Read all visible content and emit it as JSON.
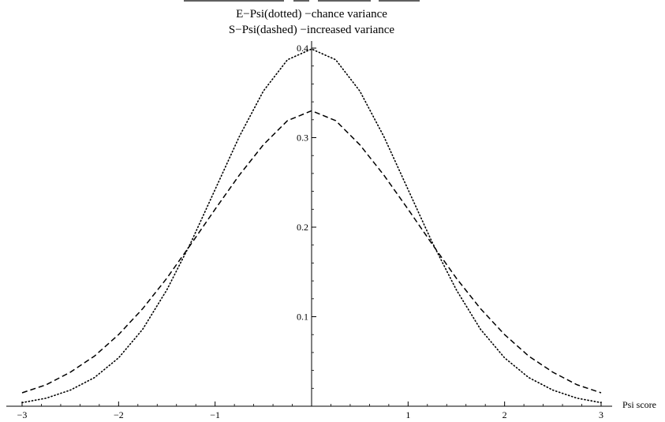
{
  "chart_data": {
    "type": "line",
    "title_lines": [
      "E−Psi(dotted) −chance variance",
      "S−Psi(dashed) −increased variance"
    ],
    "xlabel": "Psi score",
    "ylabel": "",
    "xlim": [
      -3.0,
      3.0
    ],
    "ylim": [
      0.0,
      0.4
    ],
    "x_ticks": [
      {
        "value": -3,
        "label": "−3"
      },
      {
        "value": -2,
        "label": "−2"
      },
      {
        "value": -1,
        "label": "−1"
      },
      {
        "value": 1,
        "label": "1"
      },
      {
        "value": 2,
        "label": "2"
      },
      {
        "value": 3,
        "label": "3"
      }
    ],
    "y_ticks": [
      {
        "value": 0.1,
        "label": "0.1"
      },
      {
        "value": 0.2,
        "label": "0.2"
      },
      {
        "value": 0.3,
        "label": "0.3"
      },
      {
        "value": 0.4,
        "label": "0.4"
      }
    ],
    "grid": false,
    "series": [
      {
        "style": "dotted",
        "color": "#000000",
        "x": [
          -3.0,
          -2.75,
          -2.5,
          -2.25,
          -2.0,
          -1.75,
          -1.5,
          -1.25,
          -1.0,
          -0.75,
          -0.5,
          -0.25,
          0.0,
          0.25,
          0.5,
          0.75,
          1.0,
          1.25,
          1.5,
          1.75,
          2.0,
          2.25,
          2.5,
          2.75,
          3.0
        ],
        "y": [
          0.004,
          0.009,
          0.018,
          0.032,
          0.054,
          0.086,
          0.13,
          0.183,
          0.242,
          0.301,
          0.352,
          0.387,
          0.399,
          0.387,
          0.352,
          0.301,
          0.242,
          0.183,
          0.13,
          0.086,
          0.054,
          0.032,
          0.018,
          0.009,
          0.004
        ]
      },
      {
        "style": "dashed",
        "color": "#000000",
        "x": [
          -3.0,
          -2.75,
          -2.5,
          -2.25,
          -2.0,
          -1.75,
          -1.5,
          -1.25,
          -1.0,
          -0.75,
          -0.5,
          -0.25,
          0.0,
          0.25,
          0.5,
          0.75,
          1.0,
          1.25,
          1.5,
          1.75,
          2.0,
          2.25,
          2.5,
          2.75,
          3.0
        ],
        "y": [
          0.015,
          0.024,
          0.038,
          0.056,
          0.08,
          0.109,
          0.143,
          0.181,
          0.22,
          0.258,
          0.292,
          0.319,
          0.33,
          0.319,
          0.292,
          0.258,
          0.22,
          0.181,
          0.143,
          0.109,
          0.08,
          0.056,
          0.038,
          0.024,
          0.015
        ]
      }
    ]
  }
}
